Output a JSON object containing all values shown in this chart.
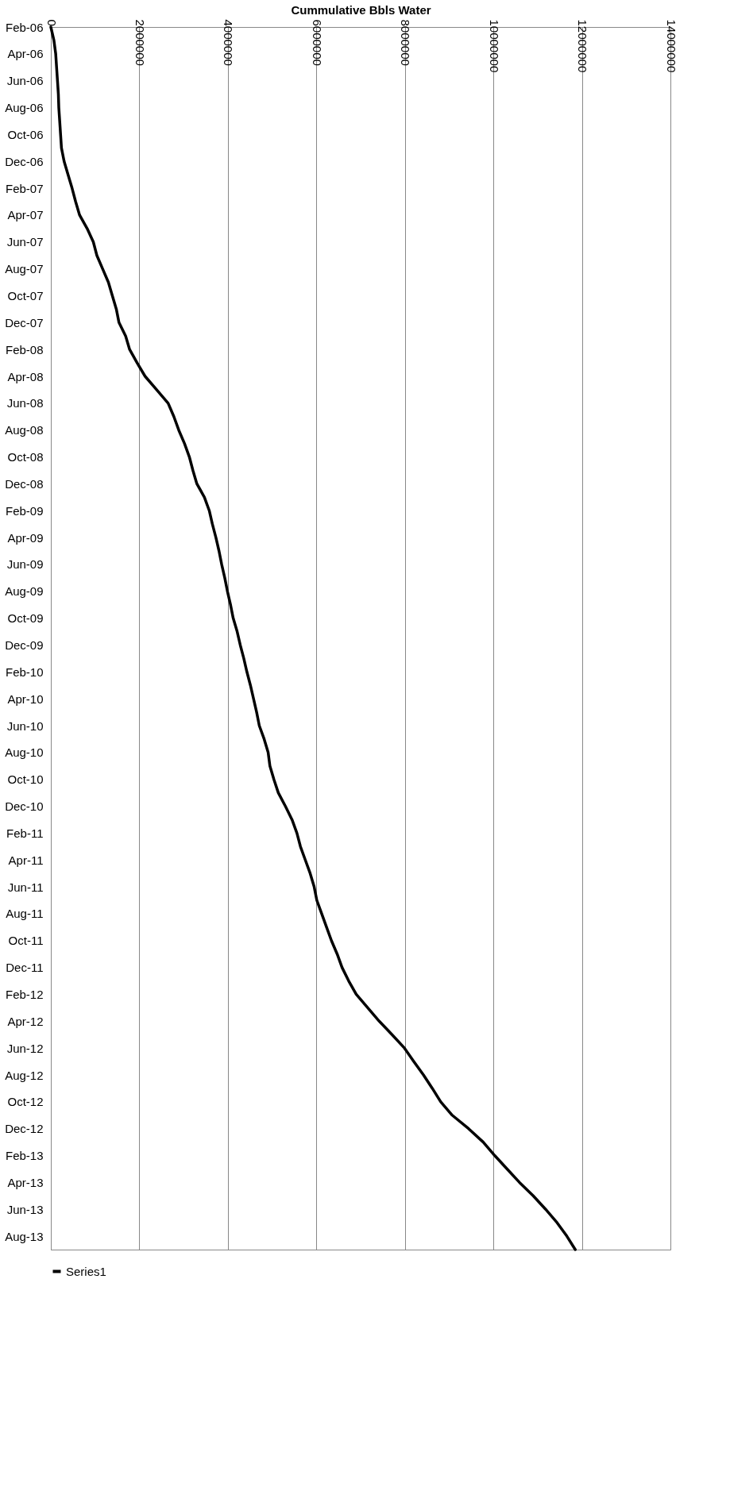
{
  "chart_data": {
    "type": "line",
    "orientation": "horizontal",
    "xlabel": "Cummulative Bbls Water",
    "categories": [
      "Feb-06",
      null,
      "Apr-06",
      null,
      "Jun-06",
      null,
      "Aug-06",
      null,
      "Oct-06",
      null,
      "Dec-06",
      null,
      "Feb-07",
      null,
      "Apr-07",
      null,
      "Jun-07",
      null,
      "Aug-07",
      null,
      "Oct-07",
      null,
      "Dec-07",
      null,
      "Feb-08",
      null,
      "Apr-08",
      null,
      "Jun-08",
      null,
      "Aug-08",
      null,
      "Oct-08",
      null,
      "Dec-08",
      null,
      "Feb-09",
      null,
      "Apr-09",
      null,
      "Jun-09",
      null,
      "Aug-09",
      null,
      "Oct-09",
      null,
      "Dec-09",
      null,
      "Feb-10",
      null,
      "Apr-10",
      null,
      "Jun-10",
      null,
      "Aug-10",
      null,
      "Oct-10",
      null,
      "Dec-10",
      null,
      "Feb-11",
      null,
      "Apr-11",
      null,
      "Jun-11",
      null,
      "Aug-11",
      null,
      "Oct-11",
      null,
      "Dec-11",
      null,
      "Feb-12",
      null,
      "Apr-12",
      null,
      "Jun-12",
      null,
      "Aug-12",
      null,
      "Oct-12",
      null,
      "Dec-12",
      null,
      "Feb-13",
      null,
      "Apr-13",
      null,
      "Jun-13",
      null,
      "Aug-13",
      null
    ],
    "series": [
      {
        "name": "Series1",
        "color": "#000000",
        "values": [
          0,
          70000,
          110000,
          130000,
          150000,
          170000,
          180000,
          200000,
          220000,
          240000,
          300000,
          390000,
          480000,
          560000,
          650000,
          820000,
          960000,
          1040000,
          1170000,
          1300000,
          1390000,
          1480000,
          1540000,
          1690000,
          1780000,
          1950000,
          2130000,
          2390000,
          2650000,
          2780000,
          2890000,
          3020000,
          3130000,
          3210000,
          3300000,
          3470000,
          3580000,
          3650000,
          3730000,
          3800000,
          3860000,
          3930000,
          3990000,
          4060000,
          4120000,
          4210000,
          4280000,
          4360000,
          4430000,
          4510000,
          4580000,
          4650000,
          4710000,
          4820000,
          4910000,
          4950000,
          5040000,
          5140000,
          5300000,
          5450000,
          5560000,
          5640000,
          5750000,
          5860000,
          5950000,
          6010000,
          6120000,
          6230000,
          6340000,
          6470000,
          6580000,
          6730000,
          6900000,
          7160000,
          7420000,
          7710000,
          7990000,
          8200000,
          8420000,
          8620000,
          8810000,
          9070000,
          9440000,
          9770000,
          10030000,
          10310000,
          10590000,
          10900000,
          11180000,
          11440000,
          11660000,
          11850000
        ]
      }
    ],
    "xlim": [
      0,
      14000000
    ],
    "xticks": [
      0,
      2000000,
      4000000,
      6000000,
      8000000,
      10000000,
      12000000,
      14000000
    ],
    "grid": "x",
    "legend": "bottom",
    "marker": "none",
    "line_style": "solid"
  }
}
